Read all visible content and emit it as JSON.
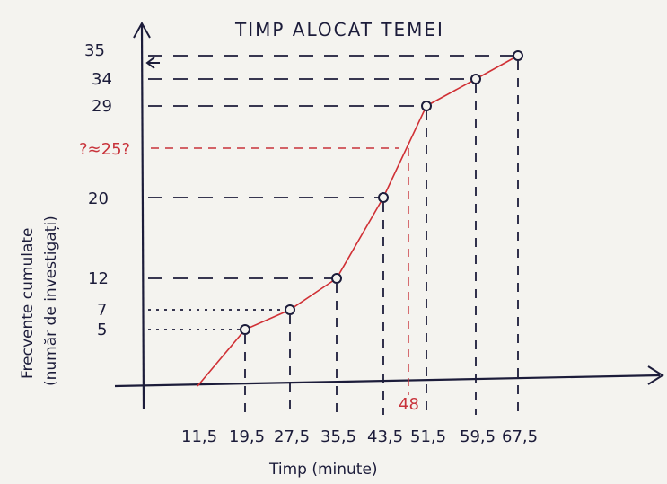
{
  "chart_data": {
    "type": "line",
    "title": "TIMP ALOCAT TEMEI",
    "xlabel": "Timp (minute)",
    "ylabel": "Frecvente cumulate",
    "ylabel_sub": "(număr de investigați)",
    "x_ticks": [
      "11,5",
      "19,5",
      "27,5",
      "35,5",
      "43,5",
      "51,5",
      "59,5",
      "67,5"
    ],
    "x": [
      11.5,
      19.5,
      27.5,
      35.5,
      43.5,
      51.5,
      59.5,
      67.5
    ],
    "y": [
      0,
      5,
      7,
      12,
      20,
      29,
      34,
      35
    ],
    "y_ticks": [
      "5",
      "7",
      "12",
      "20",
      "29",
      "34",
      "35"
    ],
    "annotation": {
      "label": "?≈25?",
      "x_label": "48",
      "x": 48,
      "y": 25
    },
    "grid": false
  },
  "colors": {
    "ink": "#1c1c3a",
    "curve": "#d03035",
    "note": "#c8323a"
  }
}
